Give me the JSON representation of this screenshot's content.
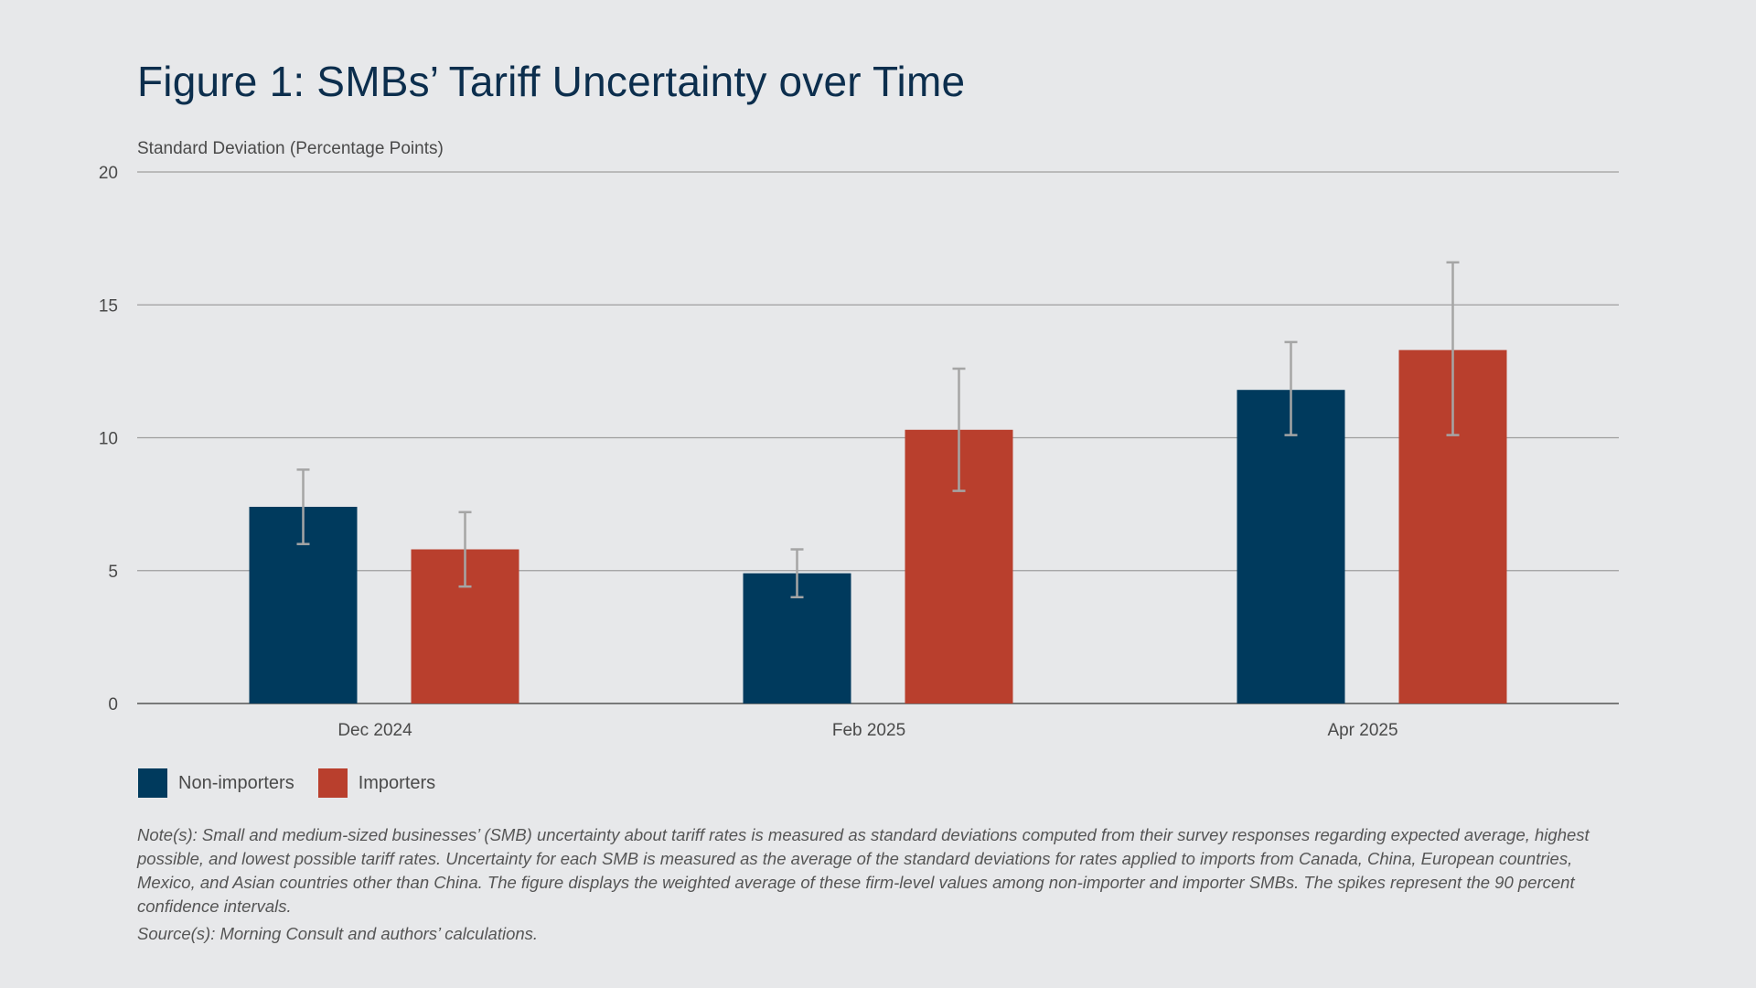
{
  "title": "Figure 1: SMBs’ Tariff Uncertainty over Time",
  "colors": {
    "background": "#e7e8ea",
    "non_importers": "#003a5d",
    "importers": "#b93f2d",
    "error_bars": "#a5a5a5",
    "gridlines": "#9e9e9e",
    "axis": "#555555"
  },
  "chart_data": {
    "type": "bar",
    "ylabel": "Standard Deviation (Percentage Points)",
    "xlabel": "",
    "ylim": [
      0,
      20
    ],
    "yticks": [
      0,
      5,
      10,
      15,
      20
    ],
    "grid": true,
    "legend_position": "bottom-left",
    "categories": [
      "Dec 2024",
      "Feb 2025",
      "Apr 2025"
    ],
    "series": [
      {
        "name": "Non-importers",
        "color": "#003a5d",
        "values": [
          7.4,
          4.9,
          11.8
        ],
        "ci_low": [
          6.0,
          4.0,
          10.1
        ],
        "ci_high": [
          8.8,
          5.8,
          13.6
        ]
      },
      {
        "name": "Importers",
        "color": "#b93f2d",
        "values": [
          5.8,
          10.3,
          13.3
        ],
        "ci_low": [
          4.4,
          8.0,
          10.1
        ],
        "ci_high": [
          7.2,
          12.6,
          16.6
        ]
      }
    ]
  },
  "notes": {
    "note": "Note(s): Small and medium-sized businesses’ (SMB) uncertainty about tariff rates is measured as standard deviations computed from their survey responses regarding expected average, highest possible, and lowest possible tariff rates. Uncertainty for each SMB is measured as the average of the standard deviations for rates applied to imports from Canada, China, European countries, Mexico, and Asian countries other than China. The figure displays the weighted average of these firm-level values among non-importer and importer SMBs. The spikes represent the 90 percent confidence intervals.",
    "source": "Source(s): Morning Consult and authors’ calculations."
  }
}
